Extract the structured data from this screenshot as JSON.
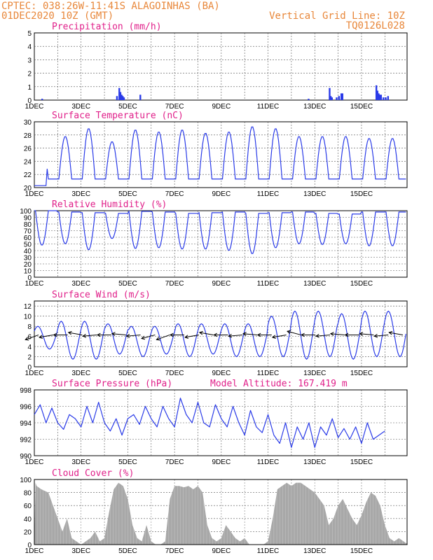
{
  "header": {
    "left_line1": "CPTEC:   038:26W-11:41S  ALAGOINHAS (BA)",
    "left_line2": "01DEC2020 10Z (GMT)",
    "right_line1": "Vertical Grid Line: 10Z",
    "right_line2": "TQ0126L028"
  },
  "colors": {
    "header": "#e8873a",
    "title": "#e0208a",
    "line": "#2a3be8",
    "bar": "#2a3be8",
    "cloud": "#a8a8a8",
    "wind_vector": "#000000"
  },
  "x_labels": [
    "1DEC",
    "3DEC",
    "5DEC",
    "7DEC",
    "9DEC",
    "11DEC",
    "13DEC",
    "15DEC"
  ],
  "chart_data": [
    {
      "type": "bar",
      "title": "Precipitation (mm/h)",
      "ylim": [
        0,
        5
      ],
      "yticks": [
        0,
        1,
        2,
        3,
        4,
        5
      ],
      "x_days": [
        0.3,
        3.5,
        3.6,
        3.65,
        3.7,
        3.75,
        3.8,
        4.5,
        11.7,
        12.6,
        12.65,
        12.7,
        12.9,
        13.0,
        13.1,
        13.15,
        14.6,
        14.65,
        14.7,
        14.75,
        14.8,
        14.9,
        15.0,
        15.1
      ],
      "values": [
        0.1,
        0.3,
        0.9,
        0.6,
        0.4,
        0.3,
        0.2,
        0.4,
        0.1,
        0.9,
        0.3,
        0.2,
        0.2,
        0.3,
        0.5,
        0.5,
        1.1,
        0.7,
        0.5,
        0.4,
        0.4,
        0.2,
        0.2,
        0.3
      ]
    },
    {
      "type": "line",
      "title": "Surface Temperature (nC)",
      "ylim": [
        20,
        30
      ],
      "yticks": [
        20,
        22,
        24,
        26,
        28,
        30
      ],
      "base": 21.3,
      "peaks": [
        26.8,
        27.8,
        29.0,
        27.0,
        28.8,
        28.5,
        28.8,
        28.3,
        28.5,
        29.3,
        29.0,
        27.8,
        27.8,
        27.8,
        27.5
      ]
    },
    {
      "type": "line",
      "title": "Relative Humidity (%)",
      "ylim": [
        0,
        100
      ],
      "yticks": [
        0,
        10,
        20,
        30,
        40,
        50,
        60,
        70,
        80,
        90,
        100
      ],
      "lows": [
        48,
        50,
        41,
        58,
        43,
        44,
        42,
        42,
        40,
        35,
        44,
        50,
        49,
        50,
        47
      ],
      "highs": [
        100,
        98,
        97,
        96,
        99,
        98,
        96,
        97,
        98,
        96,
        97,
        98,
        96,
        95,
        98
      ]
    },
    {
      "type": "line",
      "title": "Surface Wind (m/s)",
      "ylim": [
        0,
        13
      ],
      "yticks": [
        0,
        2,
        4,
        6,
        8,
        10,
        12
      ],
      "lows": [
        3.5,
        1.5,
        1.5,
        2.5,
        2,
        2.5,
        2,
        2.5,
        2,
        2,
        2,
        1.5,
        2,
        1.5,
        2
      ],
      "highs": [
        8,
        9,
        9,
        8.5,
        8,
        8,
        8.5,
        8.5,
        8.5,
        8.5,
        10,
        11,
        11,
        10.5,
        11
      ],
      "vectors_deg": [
        250,
        260,
        270,
        280,
        265,
        270,
        275,
        265,
        255,
        250,
        270,
        260,
        280,
        270,
        265,
        275,
        270,
        260,
        285,
        270,
        265,
        275,
        270,
        275,
        265,
        280
      ]
    },
    {
      "type": "line",
      "title": "Surface Pressure (hPa)",
      "annotation": "Model Altitude: 167.419 m",
      "ylim": [
        990,
        998
      ],
      "yticks": [
        990,
        992,
        994,
        996,
        998
      ],
      "x": [
        0,
        0.25,
        0.5,
        0.75,
        1,
        1.25,
        1.5,
        1.75,
        2,
        2.25,
        2.5,
        2.75,
        3,
        3.25,
        3.5,
        3.75,
        4,
        4.25,
        4.5,
        4.75,
        5,
        5.25,
        5.5,
        5.75,
        6,
        6.25,
        6.5,
        6.75,
        7,
        7.25,
        7.5,
        7.75,
        8,
        8.25,
        8.5,
        8.75,
        9,
        9.25,
        9.5,
        9.75,
        10,
        10.25,
        10.5,
        10.75,
        11,
        11.25,
        11.5,
        11.75,
        12,
        12.25,
        12.5,
        12.75,
        13,
        13.25,
        13.5,
        13.75,
        14,
        14.25,
        14.5,
        14.75,
        15
      ],
      "values": [
        995,
        996.2,
        994,
        995.8,
        994,
        993.2,
        995,
        994.5,
        993.5,
        996,
        994,
        996.5,
        994,
        993,
        994.5,
        992.5,
        994.5,
        995,
        993.8,
        996,
        994.5,
        993.5,
        996,
        994.5,
        993.5,
        997,
        995,
        994,
        996.5,
        994,
        993.5,
        996.2,
        994.5,
        993.5,
        996,
        994,
        992.5,
        995.5,
        993.5,
        992.8,
        995,
        992.5,
        991.5,
        994,
        991,
        993.5,
        992,
        994,
        991,
        993.5,
        992.5,
        994.5,
        992.2,
        993.3,
        992,
        993.5,
        991.5,
        994,
        992,
        992.5,
        993
      ]
    },
    {
      "type": "area",
      "title": "Cloud Cover (%)",
      "ylim": [
        0,
        100
      ],
      "yticks": [
        0,
        20,
        40,
        60,
        80,
        100
      ],
      "x": [
        0,
        0.05,
        0.1,
        0.3,
        0.6,
        0.8,
        1.0,
        1.2,
        1.4,
        1.6,
        1.8,
        2.0,
        2.2,
        2.4,
        2.6,
        2.8,
        3.0,
        3.2,
        3.4,
        3.6,
        3.8,
        4.0,
        4.2,
        4.4,
        4.6,
        4.8,
        5.0,
        5.2,
        5.4,
        5.6,
        5.8,
        6.0,
        6.2,
        6.4,
        6.6,
        6.8,
        7.0,
        7.2,
        7.4,
        7.6,
        7.8,
        8.0,
        8.2,
        8.4,
        8.6,
        8.8,
        9.0,
        9.2,
        9.4,
        9.6,
        9.8,
        10.0,
        10.2,
        10.4,
        10.6,
        10.8,
        11.0,
        11.2,
        11.4,
        11.6,
        11.8,
        12.0,
        12.2,
        12.4,
        12.6,
        12.8,
        13.0,
        13.2,
        13.4,
        13.6,
        13.8,
        14.0,
        14.2,
        14.4,
        14.6,
        14.8,
        15.0,
        15.2,
        15.4,
        15.6,
        15.8,
        16.0
      ],
      "values": [
        0,
        95,
        90,
        85,
        80,
        60,
        40,
        20,
        40,
        10,
        5,
        0,
        5,
        10,
        20,
        5,
        10,
        50,
        85,
        95,
        90,
        70,
        30,
        10,
        5,
        30,
        5,
        0,
        0,
        5,
        70,
        90,
        90,
        88,
        90,
        85,
        90,
        80,
        30,
        10,
        5,
        10,
        30,
        20,
        10,
        5,
        10,
        0,
        0,
        0,
        0,
        5,
        40,
        85,
        90,
        95,
        90,
        95,
        95,
        90,
        85,
        80,
        70,
        60,
        30,
        40,
        60,
        70,
        55,
        40,
        30,
        45,
        65,
        80,
        75,
        60,
        30,
        10,
        5,
        10,
        5,
        0
      ]
    }
  ]
}
